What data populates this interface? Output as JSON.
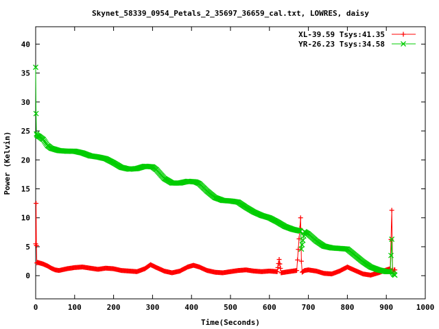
{
  "chart_data": {
    "type": "line",
    "title": "Skynet_58339_0954_Petals_2_35697_36659_cal.txt, LOWRES, daisy",
    "xlabel": "Time(Seconds)",
    "ylabel": "Power (Kelvin)",
    "xlim": [
      0,
      1000
    ],
    "ylim": [
      -4,
      43
    ],
    "xticks": [
      0,
      100,
      200,
      300,
      400,
      500,
      600,
      700,
      800,
      900,
      1000
    ],
    "yticks": [
      0,
      5,
      10,
      15,
      20,
      25,
      30,
      35,
      40
    ],
    "grid": false,
    "legend_position": "top-right",
    "series": [
      {
        "name": "XL-39.59 Tsys:41.35",
        "color": "#ff0000",
        "marker": "plus",
        "x": [
          0,
          1,
          2,
          3,
          5,
          10,
          20,
          30,
          40,
          50,
          60,
          80,
          100,
          120,
          140,
          160,
          180,
          200,
          220,
          240,
          260,
          280,
          295,
          310,
          330,
          350,
          370,
          390,
          405,
          420,
          440,
          460,
          480,
          500,
          520,
          540,
          560,
          580,
          600,
          620,
          625,
          630,
          650,
          670,
          680,
          682,
          684,
          690,
          700,
          720,
          740,
          760,
          780,
          800,
          820,
          840,
          860,
          880,
          900,
          910,
          914,
          916,
          918,
          920,
          922
        ],
        "y": [
          5.5,
          12.5,
          5.2,
          2.2,
          2.3,
          2.2,
          2.0,
          1.7,
          1.3,
          1.0,
          0.9,
          1.2,
          1.4,
          1.5,
          1.3,
          1.1,
          1.3,
          1.2,
          0.9,
          0.8,
          0.7,
          1.2,
          1.9,
          1.4,
          0.8,
          0.5,
          0.8,
          1.5,
          1.8,
          1.5,
          0.9,
          0.6,
          0.5,
          0.7,
          0.9,
          1.0,
          0.8,
          0.7,
          0.8,
          0.7,
          2.8,
          0.5,
          0.7,
          0.9,
          10.0,
          2.5,
          0.6,
          0.9,
          1.0,
          0.8,
          0.4,
          0.3,
          0.8,
          1.5,
          0.9,
          0.3,
          0.1,
          0.5,
          1.0,
          1.2,
          11.3,
          1.0,
          0.7,
          1.0,
          1.0
        ]
      },
      {
        "name": "YR-26.23 Tsys:34.58",
        "color": "#00cc00",
        "marker": "cross",
        "x": [
          0,
          1,
          2,
          3,
          5,
          10,
          20,
          30,
          40,
          50,
          60,
          80,
          100,
          120,
          140,
          160,
          180,
          200,
          220,
          240,
          260,
          280,
          300,
          310,
          330,
          350,
          370,
          390,
          410,
          420,
          440,
          460,
          480,
          500,
          520,
          540,
          560,
          580,
          600,
          620,
          640,
          660,
          680,
          682,
          690,
          700,
          720,
          740,
          760,
          780,
          800,
          820,
          840,
          860,
          880,
          900,
          910,
          914,
          916,
          918,
          920,
          922
        ],
        "y": [
          36.0,
          28.0,
          24.5,
          24.3,
          24.2,
          24.0,
          23.5,
          22.5,
          22.0,
          21.8,
          21.6,
          21.5,
          21.5,
          21.2,
          20.7,
          20.5,
          20.2,
          19.5,
          18.7,
          18.4,
          18.5,
          18.9,
          18.8,
          18.3,
          16.8,
          16.0,
          16.0,
          16.3,
          16.2,
          15.9,
          14.6,
          13.5,
          13.0,
          12.9,
          12.7,
          11.8,
          11.0,
          10.4,
          10.0,
          9.3,
          8.5,
          8.0,
          7.7,
          4.6,
          7.6,
          7.2,
          6.0,
          5.1,
          4.8,
          4.7,
          4.6,
          3.5,
          2.4,
          1.5,
          1.0,
          0.7,
          0.7,
          6.3,
          0.5,
          0.3,
          0.2,
          0.1
        ]
      }
    ]
  }
}
